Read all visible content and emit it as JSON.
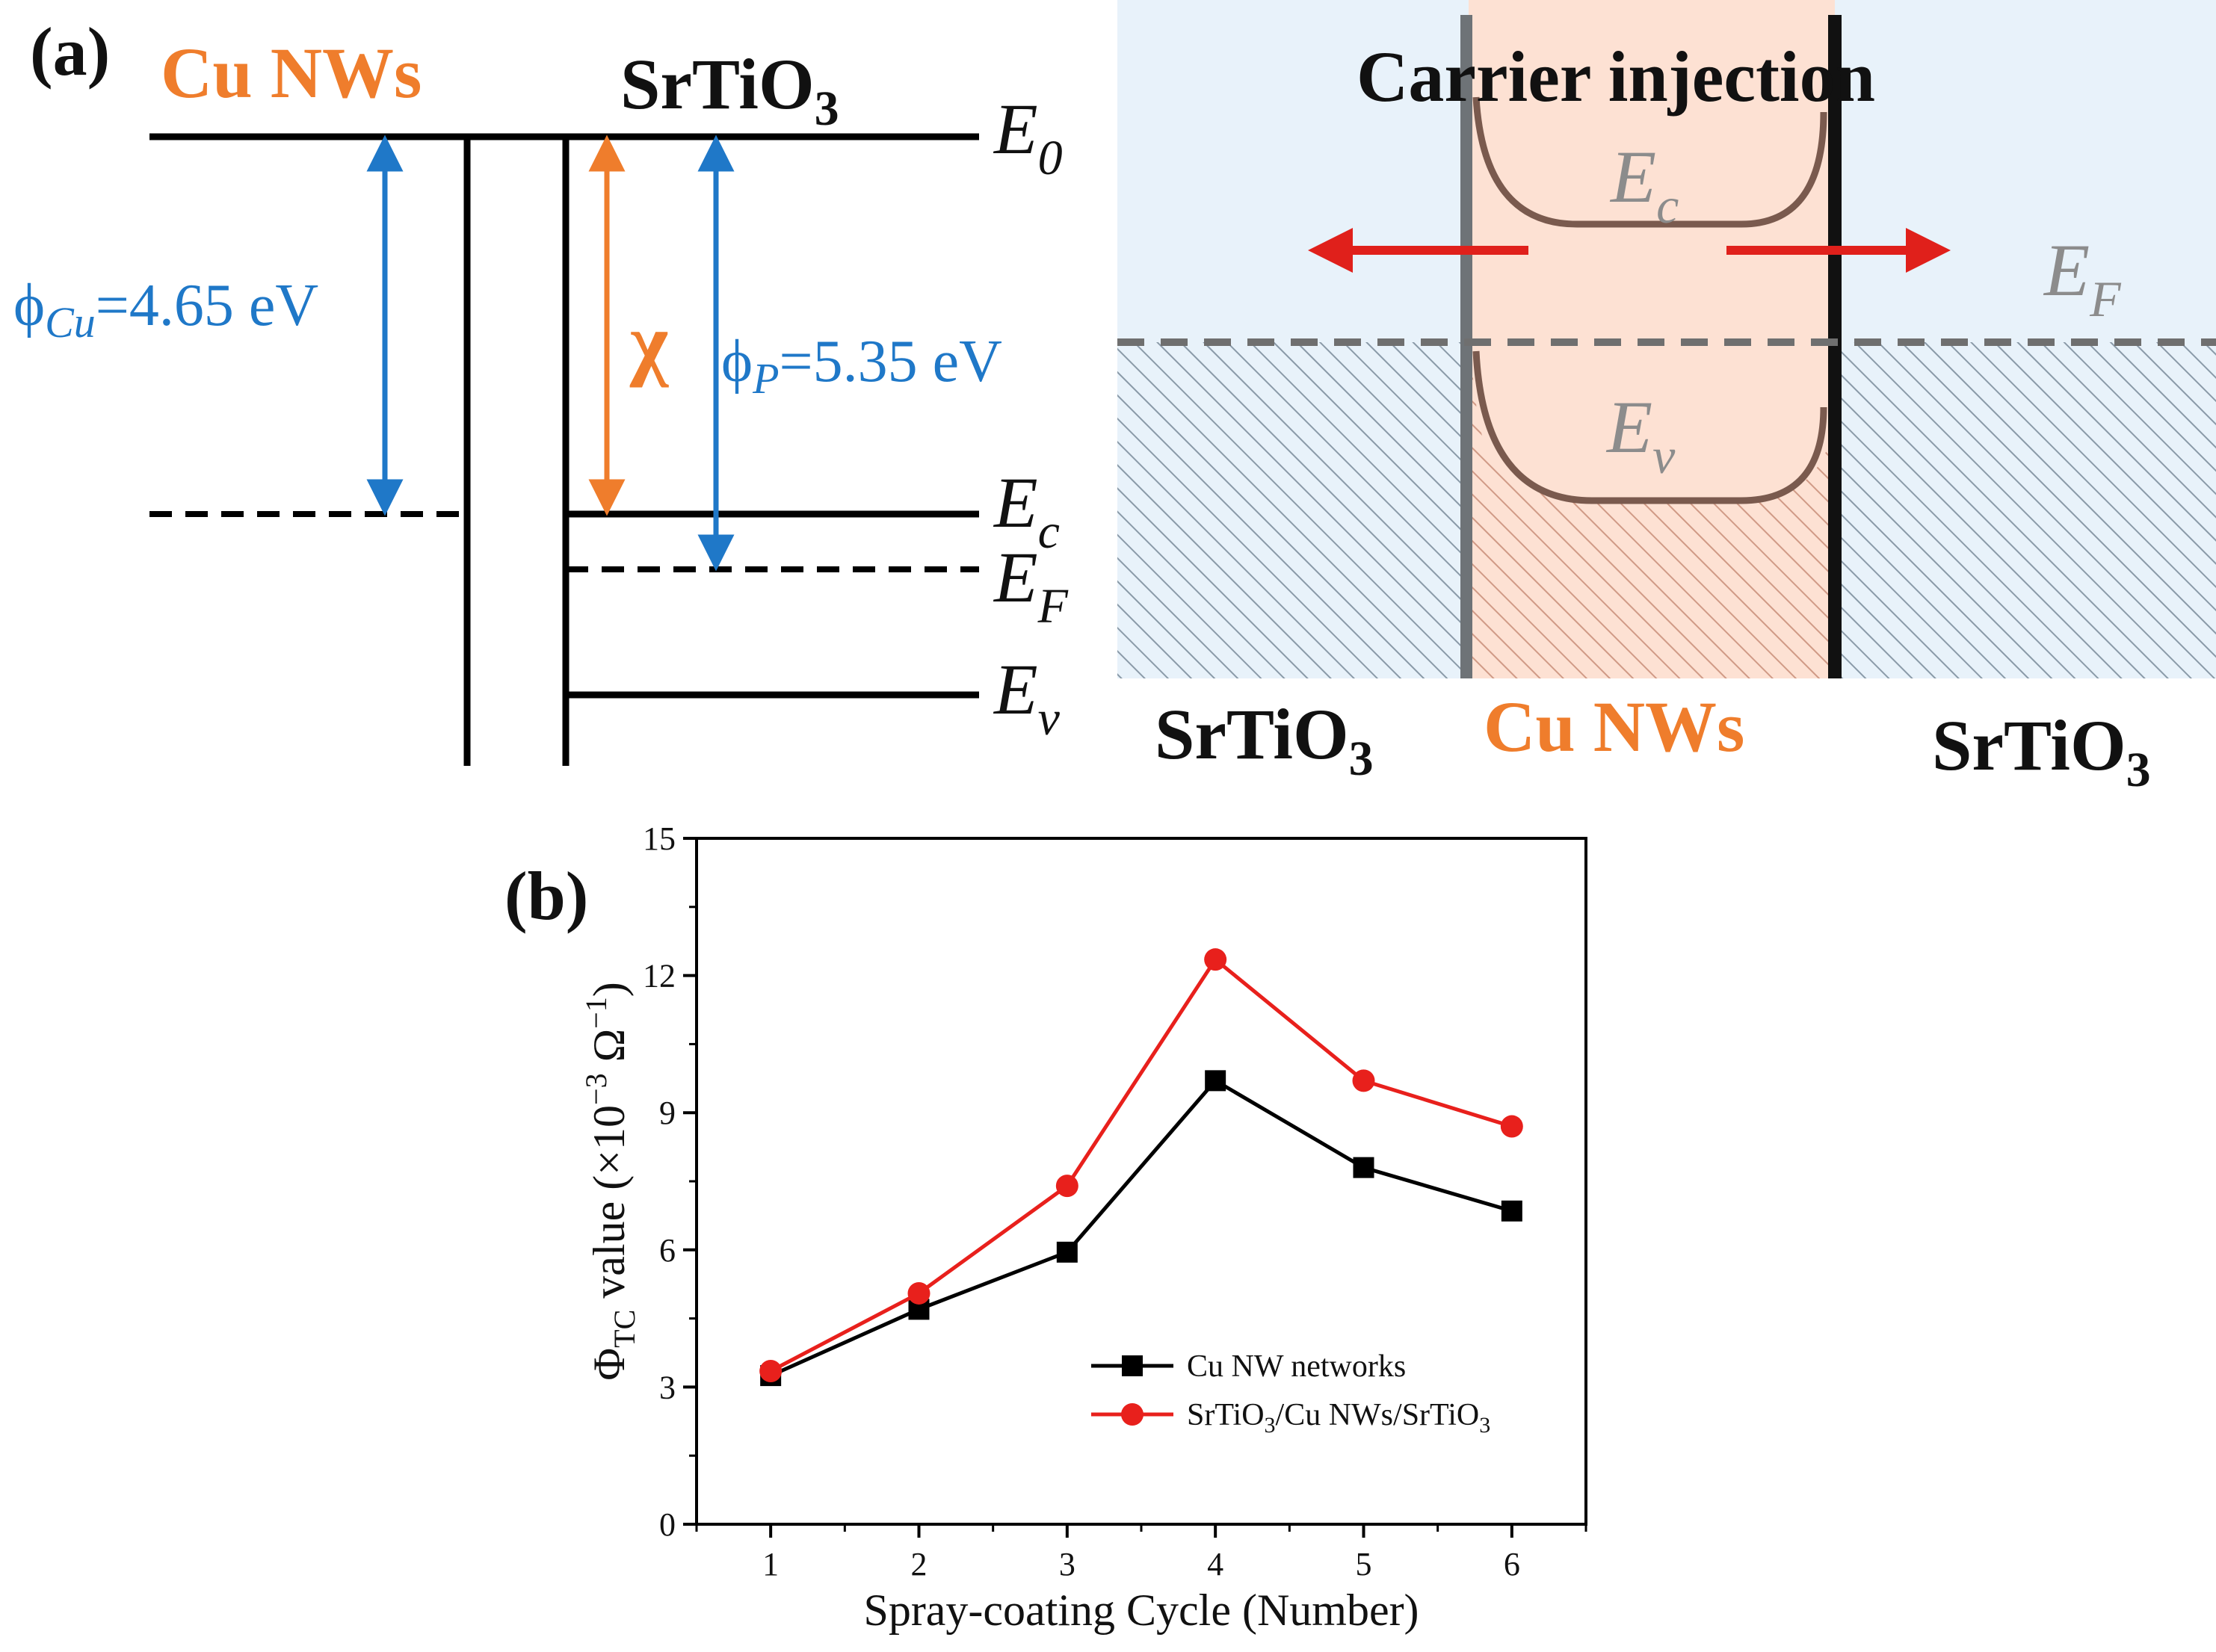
{
  "panel_a": {
    "label": "(a)",
    "left_diagram": {
      "cu_title": "Cu NWs",
      "sto_title_main": "SrTiO",
      "sto_title_sub": "3",
      "levels": {
        "e0": {
          "main": "E",
          "sub": "0"
        },
        "ec": {
          "main": "E",
          "sub": "c"
        },
        "ef": {
          "main": "E",
          "sub": "F"
        },
        "ev": {
          "main": "E",
          "sub": "v"
        }
      },
      "phi_cu": {
        "prefix": "ϕ",
        "sub": "Cu",
        "value": "=4.65 eV"
      },
      "chi": "χ",
      "phi_p": {
        "prefix": "ϕ",
        "sub": "P",
        "value": "=5.35 eV"
      }
    },
    "right_diagram": {
      "title": "Carrier injection",
      "ec": {
        "main": "E",
        "sub": "c"
      },
      "ef": {
        "main": "E",
        "sub": "F"
      },
      "ev": {
        "main": "E",
        "sub": "v"
      },
      "bottom_left": {
        "main": "SrTiO",
        "sub": "3"
      },
      "bottom_center": "Cu NWs",
      "bottom_right": {
        "main": "SrTiO",
        "sub": "3"
      }
    },
    "colors": {
      "orange": "#ef7d2c",
      "blue": "#1f78c8",
      "red": "#e0201b",
      "light_blue_bg": "#e8f2fa",
      "peach_bg": "#fde1d3"
    }
  },
  "panel_b": {
    "label": "(b)",
    "chart_data": {
      "type": "line",
      "x": [
        1,
        2,
        3,
        4,
        5,
        6
      ],
      "xticks": [
        "1",
        "2",
        "3",
        "4",
        "5",
        "6"
      ],
      "yticks": [
        "0",
        "3",
        "6",
        "9",
        "12",
        "15"
      ],
      "xlim": [
        0.5,
        6.5
      ],
      "ylim": [
        0,
        15
      ],
      "xlabel": "Spray-coating Cycle (Number)",
      "ylabel": {
        "symbol": "Φ",
        "sub": "TC",
        "text": " value (×10",
        "exp": "−3",
        "unit": " Ω",
        "unit_exp": "−1",
        "close": ")"
      },
      "series": [
        {
          "name": "Cu NW networks",
          "color": "#000000",
          "marker": "square",
          "values": [
            3.25,
            4.7,
            5.95,
            9.7,
            7.8,
            6.85
          ]
        },
        {
          "name_parts": [
            "SrTiO",
            "3",
            "/Cu NWs/SrTiO",
            "3"
          ],
          "name": "SrTiO3/Cu NWs/SrTiO3",
          "color": "#e8201c",
          "marker": "circle",
          "values": [
            3.35,
            5.05,
            7.4,
            12.35,
            9.7,
            8.7
          ]
        }
      ],
      "legend": "lower-right"
    }
  }
}
